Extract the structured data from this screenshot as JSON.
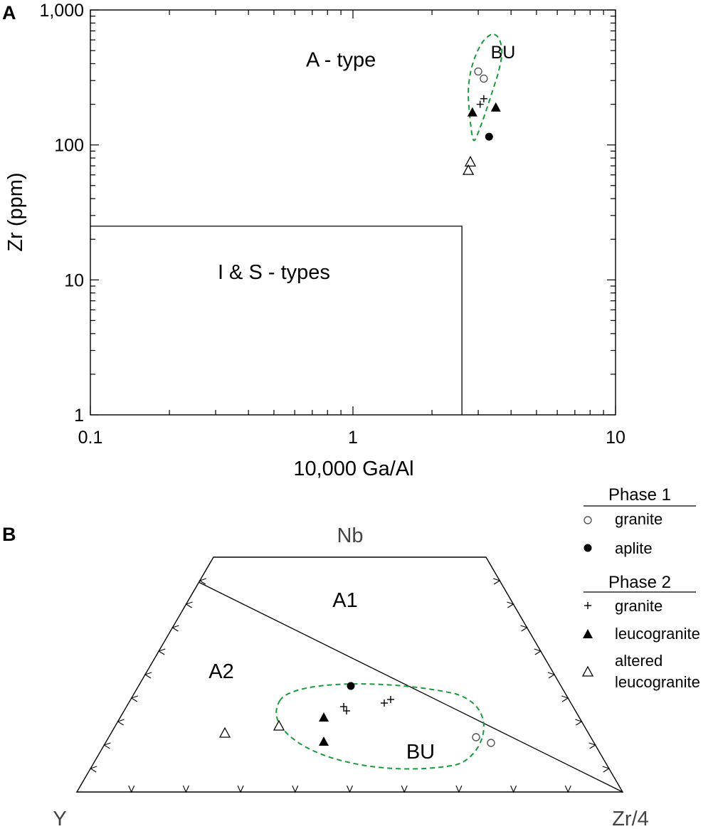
{
  "chart_data": [
    {
      "panel": "A",
      "type": "scatter",
      "title": "",
      "xlabel": "10,000 Ga/Al",
      "ylabel": "Zr  (ppm)",
      "x_scale": "log",
      "y_scale": "log",
      "xlim": [
        0.1,
        10
      ],
      "ylim": [
        1,
        1000
      ],
      "x_tick_labels": [
        {
          "value": 0.1,
          "label": "0.1"
        },
        {
          "value": 1,
          "label": "1"
        },
        {
          "value": 10,
          "label": "10"
        }
      ],
      "y_tick_labels": [
        {
          "value": 1,
          "label": "1"
        },
        {
          "value": 10,
          "label": "10"
        },
        {
          "value": 100,
          "label": "100"
        },
        {
          "value": 1000,
          "label": "1,000"
        }
      ],
      "fields": [
        {
          "label": "A - type",
          "x": 0.9,
          "y": 430
        },
        {
          "label": "I & S - types",
          "x": 0.5,
          "y": 11.5
        }
      ],
      "boundary": {
        "x_max": 2.6,
        "y_max": 25
      },
      "bu_label": "BU",
      "bu_ellipse": [
        [
          3.45,
          660
        ],
        [
          3.62,
          600
        ],
        [
          3.69,
          480
        ],
        [
          3.6,
          360
        ],
        [
          3.42,
          260
        ],
        [
          3.2,
          175
        ],
        [
          3.02,
          128
        ],
        [
          2.9,
          108
        ],
        [
          2.84,
          120
        ],
        [
          2.78,
          170
        ],
        [
          2.75,
          245
        ],
        [
          2.8,
          340
        ],
        [
          2.92,
          450
        ],
        [
          3.1,
          570
        ],
        [
          3.3,
          645
        ]
      ],
      "series": [
        {
          "name": "granite",
          "phase": "Phase 1",
          "marker": "open-circle",
          "points": [
            [
              3.0,
              350
            ],
            [
              3.15,
              310
            ]
          ]
        },
        {
          "name": "aplite",
          "phase": "Phase 1",
          "marker": "filled-circle",
          "points": [
            [
              3.3,
              115
            ]
          ]
        },
        {
          "name": "granite",
          "phase": "Phase 2",
          "marker": "plus",
          "points": [
            [
              3.05,
              200
            ],
            [
              3.15,
              220
            ]
          ]
        },
        {
          "name": "leucogranite",
          "phase": "Phase 2",
          "marker": "filled-triangle",
          "points": [
            [
              2.85,
              175
            ],
            [
              3.5,
              190
            ]
          ]
        },
        {
          "name": "altered leucogranite",
          "phase": "Phase 2",
          "marker": "open-triangle",
          "points": [
            [
              2.8,
              75
            ],
            [
              2.75,
              65
            ]
          ]
        }
      ]
    },
    {
      "panel": "B",
      "type": "scatter",
      "title": "",
      "ternary": true,
      "apices": {
        "left": "Y",
        "top": "Nb",
        "right": "Zr/4"
      },
      "fields": [
        "A1",
        "A2"
      ],
      "bu_label": "BU",
      "series": [
        {
          "name": "granite",
          "phase": "Phase 1",
          "marker": "open-circle"
        },
        {
          "name": "aplite",
          "phase": "Phase 1",
          "marker": "filled-circle"
        },
        {
          "name": "granite",
          "phase": "Phase 2",
          "marker": "plus"
        },
        {
          "name": "leucogranite",
          "phase": "Phase 2",
          "marker": "filled-triangle"
        },
        {
          "name": "altered leucogranite",
          "phase": "Phase 2",
          "marker": "open-triangle"
        }
      ]
    }
  ],
  "legend": {
    "phase1": {
      "title": "Phase 1",
      "items": [
        "granite",
        "aplite"
      ]
    },
    "phase2": {
      "title": "Phase 2",
      "items": [
        "granite",
        "leucogranite",
        "altered",
        "leucogranite"
      ]
    }
  },
  "colors": {
    "bu_outline": "#1a9b3a",
    "markers": "#000000",
    "open_circle": "#555555"
  }
}
